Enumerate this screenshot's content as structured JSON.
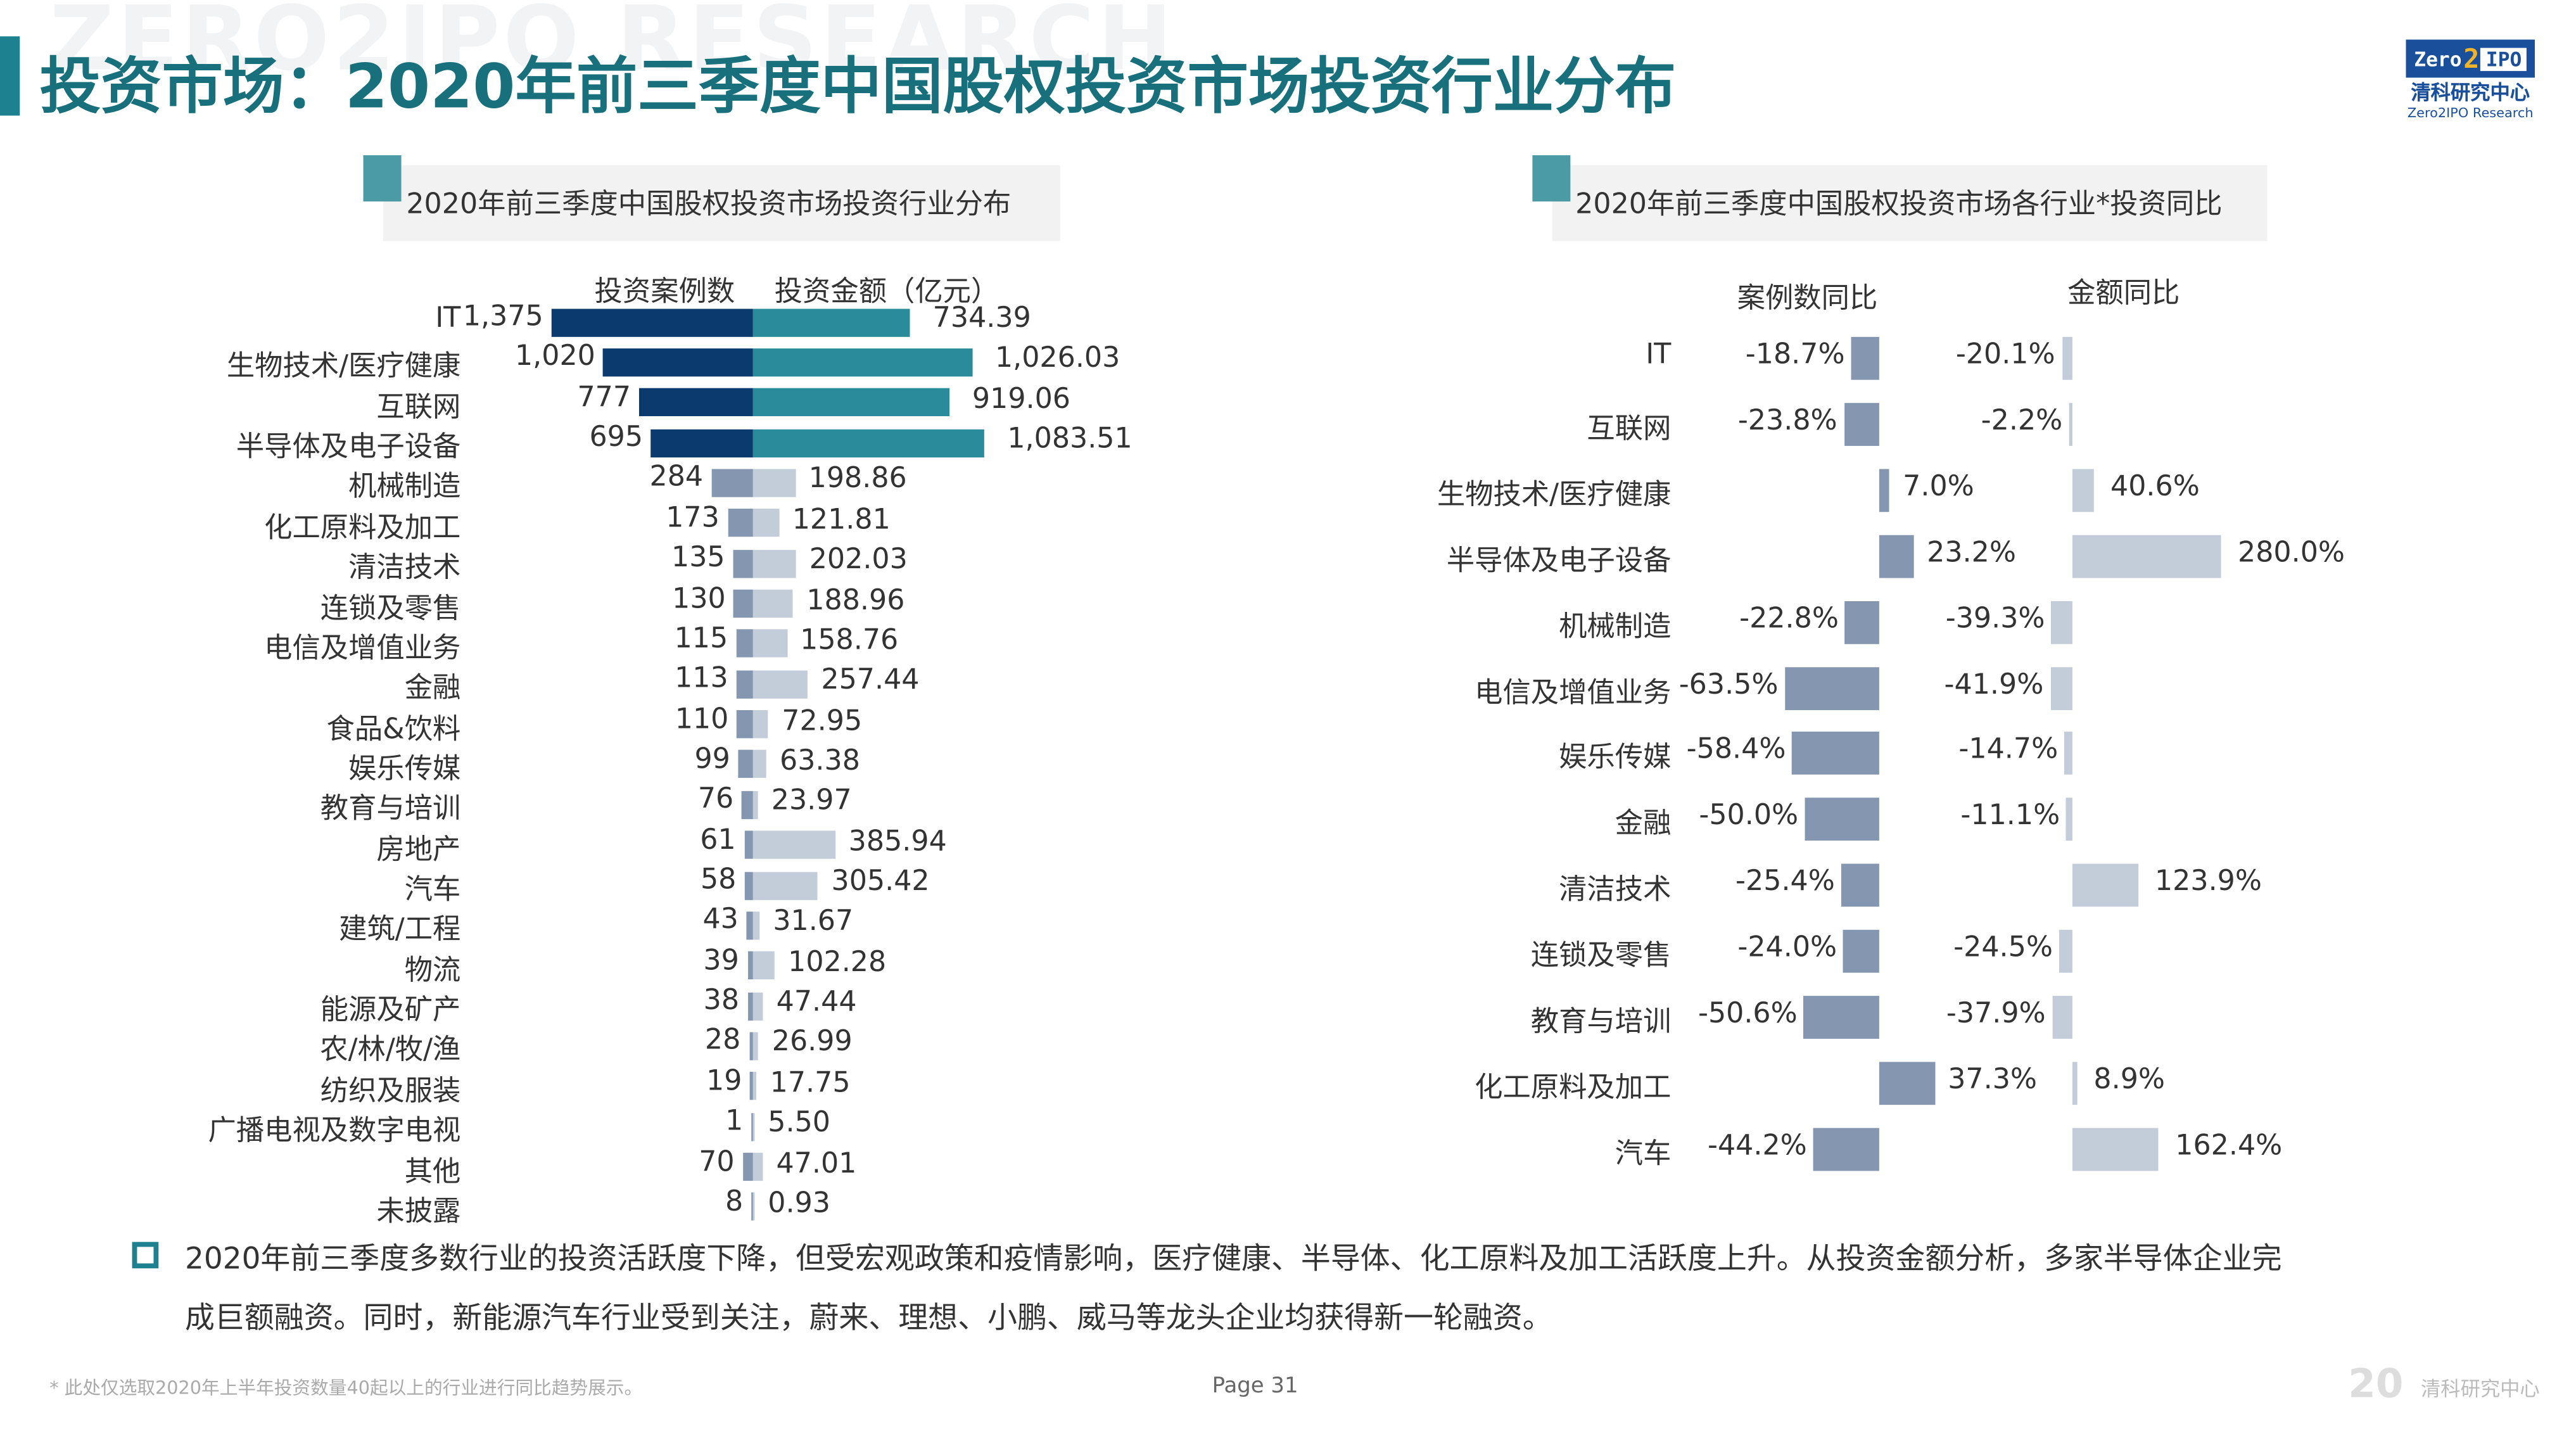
{
  "watermark": "ZERO2IPO RESEARCH",
  "title": "投资市场：2020年前三季度中国股权投资市场投资行业分布",
  "logo": {
    "zero": "Zero",
    "two": "2",
    "ipo": "IPO",
    "cn": "清科研究中心",
    "en": "Zero2IPO Research"
  },
  "colors": {
    "accent": "#1d8190",
    "count_top": "#0b3a6e",
    "amount_top": "#2a8c9a",
    "count_other": "#8496b0",
    "amount_other": "#c3ccd9"
  },
  "chart_data": [
    {
      "type": "bar",
      "title": "2020年前三季度中国股权投资市场投资行业分布",
      "series_headers": [
        "投资案例数",
        "投资金额（亿元）"
      ],
      "categories": [
        "IT",
        "生物技术/医疗健康",
        "互联网",
        "半导体及电子设备",
        "机械制造",
        "化工原料及加工",
        "清洁技术",
        "连锁及零售",
        "电信及增值业务",
        "金融",
        "食品&饮料",
        "娱乐传媒",
        "教育与培训",
        "房地产",
        "汽车",
        "建筑/工程",
        "物流",
        "能源及矿产",
        "农/林/牧/渔",
        "纺织及服装",
        "广播电视及数字电视",
        "其他",
        "未披露"
      ],
      "series": [
        {
          "name": "投资案例数",
          "values": [
            1375,
            1020,
            777,
            695,
            284,
            173,
            135,
            130,
            115,
            113,
            110,
            99,
            76,
            61,
            58,
            43,
            39,
            38,
            28,
            19,
            1,
            70,
            8
          ],
          "labels": [
            "1,375",
            "1,020",
            "777",
            "695",
            "284",
            "173",
            "135",
            "130",
            "115",
            "113",
            "110",
            "99",
            "76",
            "61",
            "58",
            "43",
            "39",
            "38",
            "28",
            "19",
            "1",
            "70",
            "8"
          ]
        },
        {
          "name": "投资金额（亿元）",
          "values": [
            734.39,
            1026.03,
            919.06,
            1083.51,
            198.86,
            121.81,
            202.03,
            188.96,
            158.76,
            257.44,
            72.95,
            63.38,
            23.97,
            385.94,
            305.42,
            31.67,
            102.28,
            47.44,
            26.99,
            17.75,
            5.5,
            47.01,
            0.93
          ],
          "labels": [
            "734.39",
            "1,026.03",
            "919.06",
            "1,083.51",
            "198.86",
            "121.81",
            "202.03",
            "188.96",
            "158.76",
            "257.44",
            "72.95",
            "63.38",
            "23.97",
            "385.94",
            "305.42",
            "31.67",
            "102.28",
            "47.44",
            "26.99",
            "17.75",
            "5.50",
            "47.01",
            "0.93"
          ]
        }
      ]
    },
    {
      "type": "bar",
      "title": "2020年前三季度中国股权投资市场各行业*投资同比",
      "series_headers": [
        "案例数同比",
        "金额同比"
      ],
      "categories": [
        "IT",
        "互联网",
        "生物技术/医疗健康",
        "半导体及电子设备",
        "机械制造",
        "电信及增值业务",
        "娱乐传媒",
        "金融",
        "清洁技术",
        "连锁及零售",
        "教育与培训",
        "化工原料及加工",
        "汽车"
      ],
      "series": [
        {
          "name": "案例数同比",
          "values": [
            -18.7,
            -23.8,
            7.0,
            23.2,
            -22.8,
            -63.5,
            -58.4,
            -50.0,
            -25.4,
            -24.0,
            -50.6,
            37.3,
            -44.2
          ],
          "labels": [
            "-18.7%",
            "-23.8%",
            "7.0%",
            "23.2%",
            "-22.8%",
            "-63.5%",
            "-58.4%",
            "-50.0%",
            "-25.4%",
            "-24.0%",
            "-50.6%",
            "37.3%",
            "-44.2%"
          ]
        },
        {
          "name": "金额同比",
          "values": [
            -20.1,
            -2.2,
            40.6,
            280.0,
            -39.3,
            -41.9,
            -14.7,
            -11.1,
            123.9,
            -24.5,
            -37.9,
            8.9,
            162.4
          ],
          "labels": [
            "-20.1%",
            "-2.2%",
            "40.6%",
            "280.0%",
            "-39.3%",
            "-41.9%",
            "-14.7%",
            "-11.1%",
            "123.9%",
            "-24.5%",
            "-37.9%",
            "8.9%",
            "162.4%"
          ]
        }
      ]
    }
  ],
  "summary": {
    "line1": "2020年前三季度多数行业的投资活跃度下降，但受宏观政策和疫情影响，医疗健康、半导体、化工原料及加工活跃度上升。从投资金额分析，多家半导体企业完",
    "line2": "成巨额融资。同时，新能源汽车行业受到关注，蔚来、理想、小鹏、威马等龙头企业均获得新一轮融资。"
  },
  "footer": {
    "note": "* 此处仅选取2020年上半年投资数量40起以上的行业进行同比趋势展示。",
    "page": "Page   31",
    "brand_num": "20",
    "brand": "清科研究中心"
  }
}
